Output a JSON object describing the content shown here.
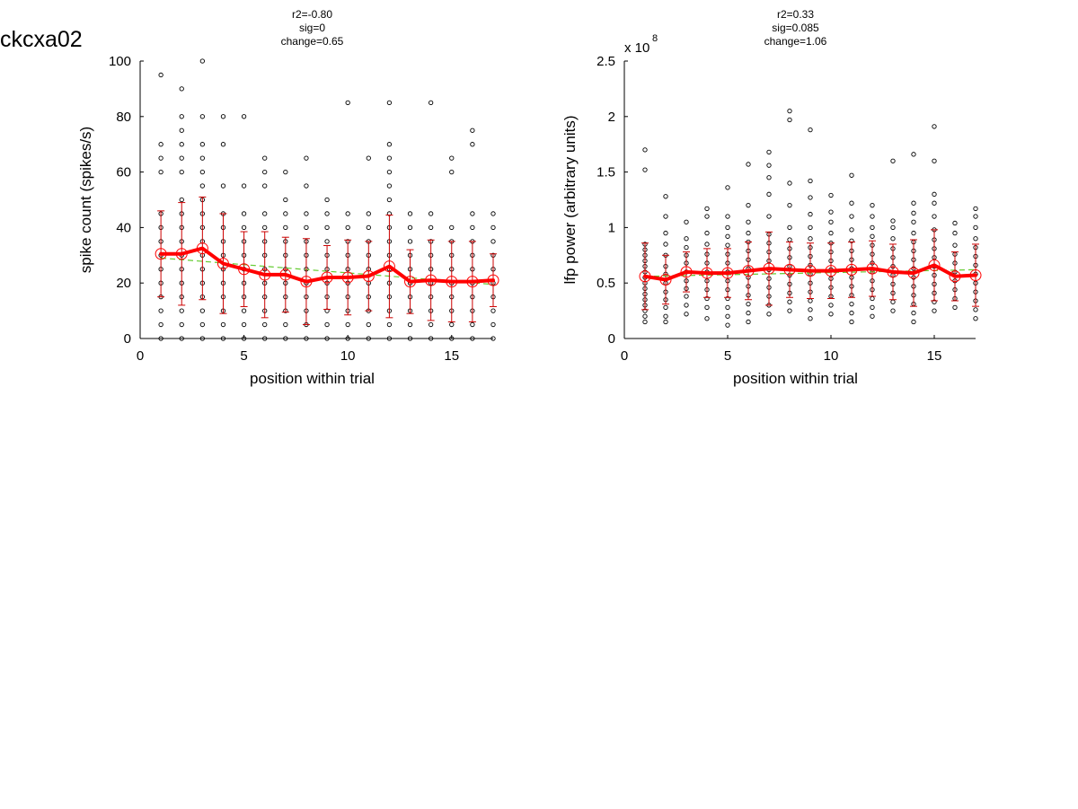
{
  "page_label": "ckcxa02",
  "colors": {
    "mean_line": "#ff0000",
    "error_bar": "#cc0000",
    "trend_line": "#66cc33",
    "points": "#000000"
  },
  "chart_data": [
    {
      "type": "scatter",
      "title_lines": [
        "r2=-0.80",
        "sig=0",
        "change=0.65"
      ],
      "xlabel": "position within trial",
      "ylabel": "spike count (spikes/s)",
      "exponent_label": "",
      "xlim": [
        0,
        17
      ],
      "ylim": [
        0,
        100
      ],
      "xticks": [
        0,
        5,
        10,
        15
      ],
      "yticks": [
        0,
        20,
        40,
        60,
        80,
        100
      ],
      "ytick_labels": [
        "0",
        "20",
        "40",
        "60",
        "80",
        "100"
      ],
      "grid": false,
      "series": [
        {
          "kind": "points",
          "data": [
            {
              "x": 1,
              "ys": [
                0,
                5,
                10,
                15,
                20,
                25,
                30,
                35,
                40,
                45,
                60,
                65,
                70,
                95
              ]
            },
            {
              "x": 2,
              "ys": [
                0,
                5,
                10,
                15,
                20,
                25,
                30,
                35,
                40,
                45,
                50,
                60,
                65,
                70,
                75,
                80,
                90
              ]
            },
            {
              "x": 3,
              "ys": [
                0,
                5,
                10,
                15,
                20,
                25,
                30,
                35,
                40,
                45,
                50,
                55,
                60,
                65,
                70,
                80,
                100
              ]
            },
            {
              "x": 4,
              "ys": [
                0,
                5,
                10,
                15,
                20,
                25,
                30,
                35,
                40,
                45,
                55,
                70,
                80
              ]
            },
            {
              "x": 5,
              "ys": [
                0,
                5,
                10,
                15,
                20,
                25,
                30,
                35,
                40,
                45,
                55,
                80
              ]
            },
            {
              "x": 6,
              "ys": [
                0,
                5,
                10,
                15,
                20,
                25,
                30,
                35,
                40,
                45,
                55,
                60,
                65
              ]
            },
            {
              "x": 7,
              "ys": [
                0,
                5,
                10,
                15,
                20,
                25,
                30,
                35,
                40,
                45,
                50,
                60
              ]
            },
            {
              "x": 8,
              "ys": [
                0,
                5,
                10,
                15,
                20,
                25,
                30,
                35,
                40,
                45,
                55,
                65
              ]
            },
            {
              "x": 9,
              "ys": [
                0,
                5,
                10,
                15,
                20,
                25,
                30,
                35,
                40,
                45,
                50
              ]
            },
            {
              "x": 10,
              "ys": [
                0,
                5,
                10,
                15,
                20,
                25,
                30,
                35,
                40,
                45,
                85
              ]
            },
            {
              "x": 11,
              "ys": [
                0,
                5,
                10,
                15,
                20,
                25,
                30,
                35,
                40,
                45,
                65
              ]
            },
            {
              "x": 12,
              "ys": [
                0,
                5,
                10,
                15,
                20,
                25,
                30,
                35,
                40,
                45,
                50,
                55,
                60,
                65,
                70,
                85
              ]
            },
            {
              "x": 13,
              "ys": [
                0,
                5,
                10,
                15,
                20,
                25,
                30,
                35,
                40,
                45
              ]
            },
            {
              "x": 14,
              "ys": [
                0,
                5,
                10,
                15,
                20,
                25,
                30,
                35,
                40,
                45,
                85
              ]
            },
            {
              "x": 15,
              "ys": [
                0,
                5,
                10,
                15,
                20,
                25,
                30,
                35,
                40,
                60,
                65
              ]
            },
            {
              "x": 16,
              "ys": [
                0,
                5,
                10,
                15,
                20,
                25,
                30,
                35,
                40,
                45,
                70,
                75
              ]
            },
            {
              "x": 17,
              "ys": [
                0,
                5,
                10,
                15,
                20,
                25,
                30,
                35,
                40,
                45
              ]
            }
          ]
        },
        {
          "kind": "mean",
          "x": [
            1,
            2,
            3,
            4,
            5,
            6,
            7,
            8,
            9,
            10,
            11,
            12,
            13,
            14,
            15,
            16,
            17
          ],
          "y": [
            30.5,
            30.5,
            32.5,
            27,
            25,
            23,
            23,
            20.5,
            22,
            22,
            22.5,
            26,
            20.5,
            21,
            20.5,
            20.5,
            21
          ],
          "sd": [
            15.5,
            18.5,
            18.5,
            18,
            13.5,
            15.5,
            13.5,
            15.5,
            11.5,
            13.5,
            12.5,
            18.5,
            11.5,
            14.5,
            14.5,
            14.5,
            9.5
          ]
        },
        {
          "kind": "trend",
          "x": [
            1,
            17
          ],
          "y": [
            29,
            19.5
          ]
        }
      ]
    },
    {
      "type": "scatter",
      "title_lines": [
        "r2=0.33",
        "sig=0.085",
        "change=1.06"
      ],
      "xlabel": "position within trial",
      "ylabel": "lfp power (arbitrary units)",
      "exponent_label": "x 10",
      "exponent_power": "8",
      "xlim": [
        0,
        17
      ],
      "ylim": [
        0,
        2.5
      ],
      "xticks": [
        0,
        5,
        10,
        15
      ],
      "yticks": [
        0,
        0.5,
        1,
        1.5,
        2,
        2.5
      ],
      "ytick_labels": [
        "0",
        "0.5",
        "1",
        "1.5",
        "2",
        "2.5"
      ],
      "grid": false,
      "series": [
        {
          "kind": "points",
          "data": [
            {
              "x": 1,
              "ys": [
                0.15,
                0.2,
                0.25,
                0.3,
                0.35,
                0.4,
                0.45,
                0.5,
                0.55,
                0.6,
                0.65,
                0.7,
                0.75,
                0.8,
                0.85,
                1.52,
                1.7
              ]
            },
            {
              "x": 2,
              "ys": [
                0.15,
                0.2,
                0.28,
                0.35,
                0.42,
                0.5,
                0.58,
                0.65,
                0.75,
                0.85,
                0.95,
                1.1,
                1.28
              ]
            },
            {
              "x": 3,
              "ys": [
                0.22,
                0.3,
                0.38,
                0.45,
                0.52,
                0.6,
                0.68,
                0.75,
                0.82,
                0.9,
                1.05
              ]
            },
            {
              "x": 4,
              "ys": [
                0.18,
                0.28,
                0.36,
                0.44,
                0.52,
                0.6,
                0.68,
                0.76,
                0.85,
                0.95,
                1.1,
                1.17
              ]
            },
            {
              "x": 5,
              "ys": [
                0.12,
                0.2,
                0.28,
                0.36,
                0.44,
                0.52,
                0.6,
                0.68,
                0.76,
                0.84,
                0.92,
                1.0,
                1.1,
                1.36
              ]
            },
            {
              "x": 6,
              "ys": [
                0.15,
                0.23,
                0.31,
                0.39,
                0.47,
                0.55,
                0.63,
                0.71,
                0.79,
                0.87,
                0.95,
                1.05,
                1.2,
                1.57
              ]
            },
            {
              "x": 7,
              "ys": [
                0.22,
                0.3,
                0.38,
                0.46,
                0.54,
                0.62,
                0.7,
                0.78,
                0.86,
                0.94,
                1.1,
                1.3,
                1.45,
                1.56,
                1.68
              ]
            },
            {
              "x": 8,
              "ys": [
                0.25,
                0.33,
                0.41,
                0.49,
                0.57,
                0.65,
                0.73,
                0.81,
                0.89,
                1.0,
                1.2,
                1.4,
                1.97,
                2.05
              ]
            },
            {
              "x": 9,
              "ys": [
                0.18,
                0.26,
                0.34,
                0.42,
                0.5,
                0.58,
                0.66,
                0.74,
                0.82,
                0.9,
                1.0,
                1.12,
                1.27,
                1.42,
                1.88
              ]
            },
            {
              "x": 10,
              "ys": [
                0.22,
                0.3,
                0.38,
                0.46,
                0.54,
                0.62,
                0.7,
                0.78,
                0.86,
                0.95,
                1.05,
                1.14,
                1.29
              ]
            },
            {
              "x": 11,
              "ys": [
                0.15,
                0.23,
                0.31,
                0.39,
                0.47,
                0.55,
                0.63,
                0.71,
                0.79,
                0.88,
                0.98,
                1.1,
                1.22,
                1.47
              ]
            },
            {
              "x": 12,
              "ys": [
                0.2,
                0.28,
                0.36,
                0.44,
                0.52,
                0.6,
                0.68,
                0.76,
                0.84,
                0.92,
                1.0,
                1.1,
                1.2
              ]
            },
            {
              "x": 13,
              "ys": [
                0.25,
                0.33,
                0.41,
                0.49,
                0.57,
                0.65,
                0.73,
                0.81,
                0.9,
                1.0,
                1.06,
                1.6
              ]
            },
            {
              "x": 14,
              "ys": [
                0.15,
                0.23,
                0.31,
                0.39,
                0.47,
                0.55,
                0.63,
                0.71,
                0.79,
                0.87,
                0.95,
                1.05,
                1.13,
                1.22,
                1.66
              ]
            },
            {
              "x": 15,
              "ys": [
                0.25,
                0.33,
                0.41,
                0.49,
                0.57,
                0.65,
                0.73,
                0.81,
                0.89,
                0.98,
                1.1,
                1.22,
                1.3,
                1.6,
                1.91
              ]
            },
            {
              "x": 16,
              "ys": [
                0.28,
                0.36,
                0.44,
                0.52,
                0.6,
                0.68,
                0.76,
                0.84,
                0.95,
                1.04
              ]
            },
            {
              "x": 17,
              "ys": [
                0.18,
                0.26,
                0.34,
                0.42,
                0.5,
                0.58,
                0.66,
                0.74,
                0.82,
                0.9,
                1.0,
                1.1,
                1.17
              ]
            }
          ]
        },
        {
          "kind": "mean",
          "x": [
            1,
            2,
            3,
            4,
            5,
            6,
            7,
            8,
            9,
            10,
            11,
            12,
            13,
            14,
            15,
            16,
            17
          ],
          "y": [
            0.56,
            0.53,
            0.6,
            0.59,
            0.59,
            0.61,
            0.63,
            0.62,
            0.61,
            0.61,
            0.62,
            0.63,
            0.6,
            0.59,
            0.66,
            0.56,
            0.57
          ],
          "sd": [
            0.3,
            0.22,
            0.18,
            0.22,
            0.22,
            0.26,
            0.33,
            0.25,
            0.25,
            0.25,
            0.25,
            0.25,
            0.25,
            0.3,
            0.32,
            0.22,
            0.28
          ]
        },
        {
          "kind": "trend",
          "x": [
            1,
            17
          ],
          "y": [
            0.56,
            0.62
          ]
        }
      ]
    }
  ]
}
